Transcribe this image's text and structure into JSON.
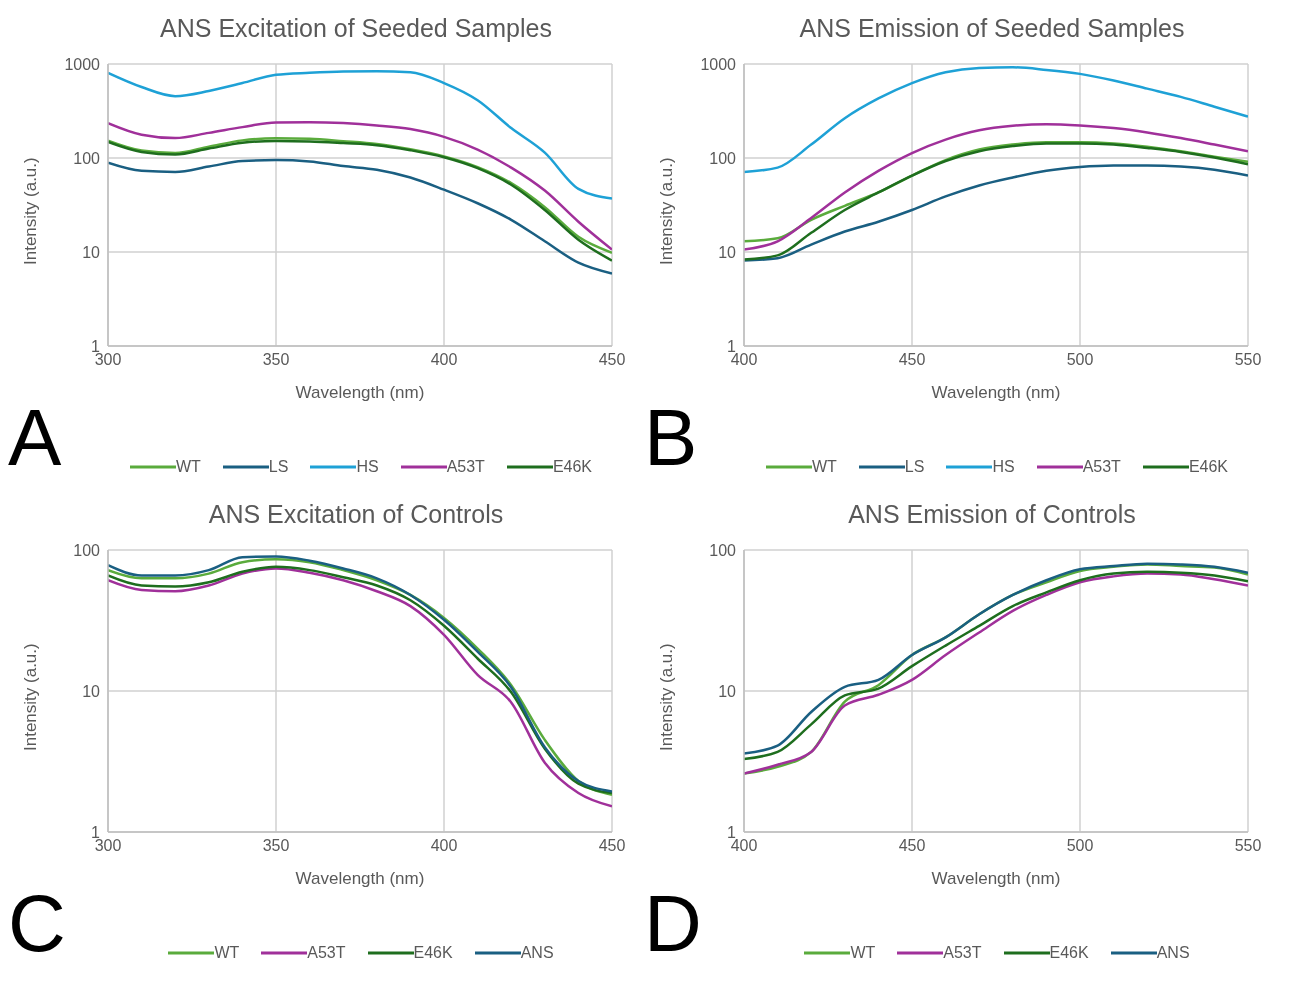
{
  "chart_data": [
    {
      "type": "line",
      "title": "ANS Excitation of Seeded Samples",
      "xlabel": "Wavelength (nm)",
      "ylabel": "Intensity (a.u.)",
      "annotations": [
        "A"
      ],
      "log": "y",
      "grid": true,
      "legend": "bottom",
      "marker": "none",
      "line_style": "solid",
      "xlim": [
        300,
        450
      ],
      "xticks": [
        300,
        350,
        400,
        450
      ],
      "ylim": [
        1,
        1000
      ],
      "yticks": [
        1,
        10,
        100,
        1000
      ],
      "x": [
        300,
        310,
        320,
        330,
        340,
        350,
        360,
        370,
        380,
        390,
        400,
        410,
        420,
        430,
        440,
        450
      ],
      "series": [
        {
          "name": "WT",
          "color": "#5aab3c",
          "values": [
            153,
            120,
            113,
            132,
            154,
            162,
            160,
            151,
            141,
            124,
            104,
            80,
            54,
            30,
            14.5,
            9.8
          ]
        },
        {
          "name": "LS",
          "color": "#1a5f82",
          "values": [
            89,
            73,
            71,
            81,
            93,
            95,
            92,
            82,
            75,
            62,
            46,
            33,
            22,
            13,
            7.7,
            5.9
          ]
        },
        {
          "name": "HS",
          "color": "#1ea1d6",
          "values": [
            805,
            569,
            455,
            516,
            627,
            767,
            805,
            831,
            838,
            818,
            627,
            412,
            208,
            114,
            47,
            37
          ]
        },
        {
          "name": "A53T",
          "color": "#a0309a",
          "values": [
            235,
            177,
            163,
            185,
            213,
            239,
            240,
            235,
            222,
            203,
            168,
            123,
            79,
            45,
            21,
            10.6
          ]
        },
        {
          "name": "E46K",
          "color": "#1e6e1e",
          "values": [
            148,
            116,
            109,
            126,
            145,
            152,
            150,
            144,
            137,
            121,
            102,
            78,
            52,
            28,
            13.5,
            8.1
          ]
        }
      ]
    },
    {
      "type": "line",
      "title": "ANS Emission of Seeded Samples",
      "xlabel": "Wavelength (nm)",
      "ylabel": "Intensity (a.u.)",
      "annotations": [
        "B"
      ],
      "log": "y",
      "grid": true,
      "legend": "bottom",
      "marker": "none",
      "line_style": "solid",
      "xlim": [
        400,
        550
      ],
      "xticks": [
        400,
        450,
        500,
        550
      ],
      "ylim": [
        1,
        1000
      ],
      "yticks": [
        1,
        10,
        100,
        1000
      ],
      "x": [
        400,
        410,
        420,
        430,
        440,
        450,
        460,
        470,
        480,
        490,
        500,
        510,
        520,
        530,
        540,
        550
      ],
      "series": [
        {
          "name": "WT",
          "color": "#5aab3c",
          "values": [
            13,
            14,
            22,
            31,
            43,
            65,
            95,
            123,
            139,
            147,
            147,
            143,
            132,
            118,
            103,
            91
          ]
        },
        {
          "name": "LS",
          "color": "#1a5f82",
          "values": [
            8.1,
            8.6,
            12,
            16.5,
            21,
            28,
            39,
            51,
            62,
            73,
            80,
            83,
            83,
            81,
            75,
            65
          ]
        },
        {
          "name": "HS",
          "color": "#1ea1d6",
          "values": [
            71,
            79,
            139,
            265,
            430,
            627,
            818,
            908,
            922,
            865,
            785,
            668,
            547,
            447,
            351,
            276
          ]
        },
        {
          "name": "A53T",
          "color": "#a0309a",
          "values": [
            10.6,
            13,
            23,
            43,
            73,
            113,
            157,
            197,
            220,
            229,
            222,
            208,
            187,
            163,
            139,
            118
          ]
        },
        {
          "name": "E46K",
          "color": "#1e6e1e",
          "values": [
            8.3,
            9.2,
            16,
            28,
            43,
            65,
            93,
            118,
            134,
            143,
            143,
            139,
            128,
            116,
            101,
            86
          ]
        }
      ]
    },
    {
      "type": "line",
      "title": "ANS Excitation of Controls",
      "xlabel": "Wavelength (nm)",
      "ylabel": "Intensity (a.u.)",
      "annotations": [
        "C"
      ],
      "log": "y",
      "grid": true,
      "legend": "bottom",
      "marker": "none",
      "line_style": "solid",
      "xlim": [
        300,
        450
      ],
      "xticks": [
        300,
        350,
        400,
        450
      ],
      "ylim": [
        1,
        100
      ],
      "yticks": [
        1,
        10,
        100
      ],
      "x": [
        300,
        310,
        320,
        330,
        340,
        350,
        360,
        370,
        380,
        390,
        400,
        410,
        420,
        430,
        440,
        450
      ],
      "series": [
        {
          "name": "WT",
          "color": "#5aab3c",
          "values": [
            72,
            63,
            63,
            68,
            82,
            86,
            82,
            72,
            61,
            48,
            33,
            20,
            11,
            4.5,
            2.3,
            1.84
          ]
        },
        {
          "name": "A53T",
          "color": "#a0309a",
          "values": [
            61,
            52,
            51,
            56,
            68,
            74,
            69,
            61,
            51,
            40,
            25,
            13,
            8.3,
            3.1,
            1.89,
            1.52
          ]
        },
        {
          "name": "E46K",
          "color": "#1e6e1e",
          "values": [
            66,
            56,
            55,
            59,
            70,
            76,
            72,
            64,
            56,
            44,
            29,
            17,
            9.8,
            3.9,
            2.2,
            1.89
          ]
        },
        {
          "name": "ANS",
          "color": "#1a5f82",
          "values": [
            78,
            66,
            66,
            72,
            89,
            90,
            84,
            74,
            63,
            48,
            32,
            19,
            10.6,
            4.0,
            2.3,
            1.94
          ]
        }
      ]
    },
    {
      "type": "line",
      "title": "ANS Emission of Controls",
      "xlabel": "Wavelength (nm)",
      "ylabel": "Intensity (a.u.)",
      "annotations": [
        "D"
      ],
      "log": "y",
      "grid": true,
      "legend": "bottom",
      "marker": "none",
      "line_style": "solid",
      "xlim": [
        400,
        550
      ],
      "xticks": [
        400,
        450,
        500,
        550
      ],
      "ylim": [
        1,
        100
      ],
      "yticks": [
        1,
        10,
        100
      ],
      "x": [
        400,
        410,
        420,
        430,
        440,
        450,
        460,
        470,
        480,
        490,
        500,
        510,
        520,
        530,
        540,
        550
      ],
      "series": [
        {
          "name": "WT",
          "color": "#5aab3c",
          "values": [
            2.6,
            2.9,
            3.7,
            8.4,
            11,
            18,
            24,
            35,
            48,
            59,
            71,
            76,
            79,
            77,
            75,
            67
          ]
        },
        {
          "name": "A53T",
          "color": "#a0309a",
          "values": [
            2.6,
            3.0,
            3.7,
            7.9,
            9.4,
            12,
            18,
            26,
            37,
            48,
            59,
            65,
            68,
            67,
            62,
            56
          ]
        },
        {
          "name": "E46K",
          "color": "#1e6e1e",
          "values": [
            3.3,
            3.7,
            5.8,
            9.3,
            10.4,
            15,
            21,
            29,
            40,
            50,
            61,
            68,
            70,
            69,
            66,
            60
          ]
        },
        {
          "name": "ANS",
          "color": "#1a5f82",
          "values": [
            3.6,
            4.1,
            7.1,
            10.7,
            12,
            18,
            24,
            35,
            48,
            61,
            73,
            77,
            80,
            79,
            76,
            69
          ]
        }
      ]
    }
  ]
}
